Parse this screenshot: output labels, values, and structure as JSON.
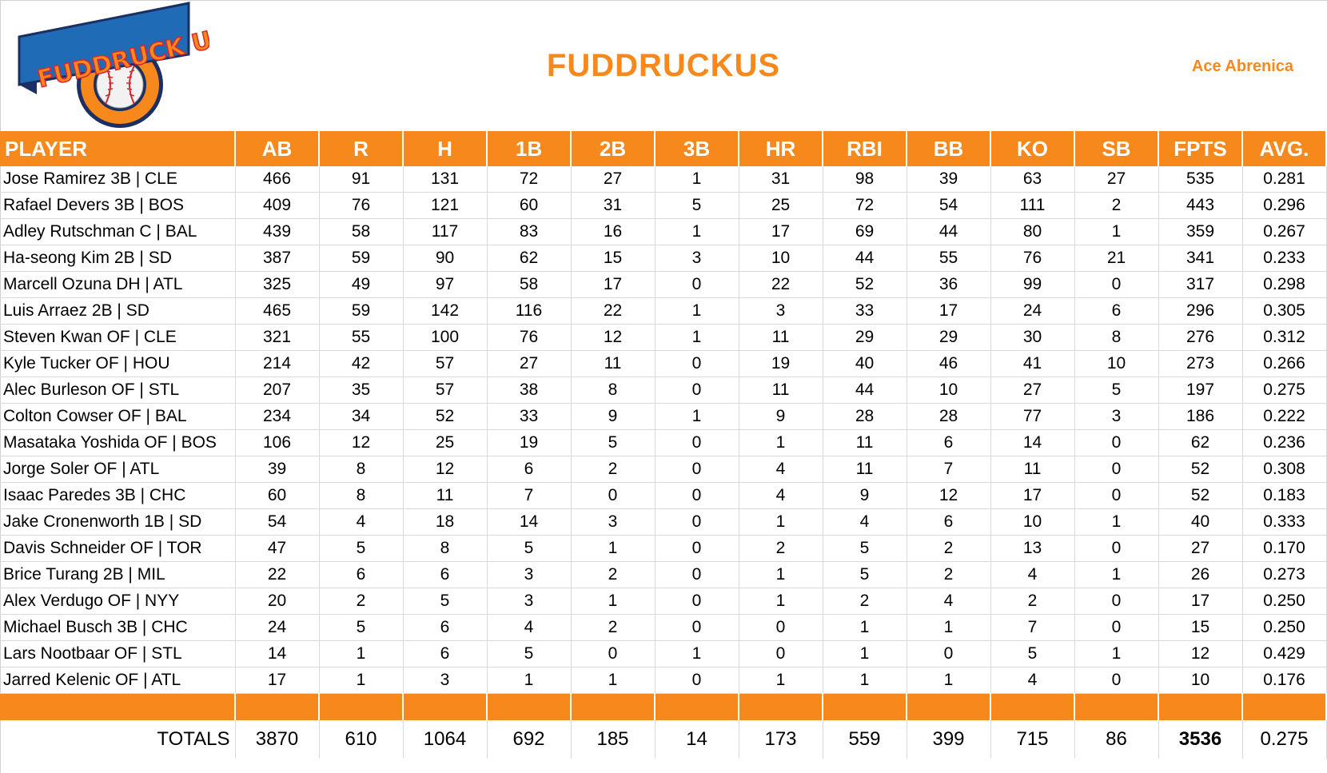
{
  "header": {
    "logo_text": "FUDDRUCK US",
    "team_name": "FUDDRUCKUS",
    "owner": "Ace Abrenica"
  },
  "columns": [
    "PLAYER",
    "AB",
    "R",
    "H",
    "1B",
    "2B",
    "3B",
    "HR",
    "RBI",
    "BB",
    "KO",
    "SB",
    "FPTS",
    "AVG."
  ],
  "players": [
    [
      "Jose Ramirez 3B | CLE",
      "466",
      "91",
      "131",
      "72",
      "27",
      "1",
      "31",
      "98",
      "39",
      "63",
      "27",
      "535",
      "0.281"
    ],
    [
      "Rafael Devers 3B | BOS",
      "409",
      "76",
      "121",
      "60",
      "31",
      "5",
      "25",
      "72",
      "54",
      "111",
      "2",
      "443",
      "0.296"
    ],
    [
      "Adley Rutschman C | BAL",
      "439",
      "58",
      "117",
      "83",
      "16",
      "1",
      "17",
      "69",
      "44",
      "80",
      "1",
      "359",
      "0.267"
    ],
    [
      "Ha-seong Kim 2B | SD",
      "387",
      "59",
      "90",
      "62",
      "15",
      "3",
      "10",
      "44",
      "55",
      "76",
      "21",
      "341",
      "0.233"
    ],
    [
      "Marcell Ozuna DH | ATL",
      "325",
      "49",
      "97",
      "58",
      "17",
      "0",
      "22",
      "52",
      "36",
      "99",
      "0",
      "317",
      "0.298"
    ],
    [
      "Luis Arraez 2B | SD",
      "465",
      "59",
      "142",
      "116",
      "22",
      "1",
      "3",
      "33",
      "17",
      "24",
      "6",
      "296",
      "0.305"
    ],
    [
      "Steven Kwan OF | CLE",
      "321",
      "55",
      "100",
      "76",
      "12",
      "1",
      "11",
      "29",
      "29",
      "30",
      "8",
      "276",
      "0.312"
    ],
    [
      "Kyle Tucker OF | HOU",
      "214",
      "42",
      "57",
      "27",
      "11",
      "0",
      "19",
      "40",
      "46",
      "41",
      "10",
      "273",
      "0.266"
    ],
    [
      "Alec Burleson OF | STL",
      "207",
      "35",
      "57",
      "38",
      "8",
      "0",
      "11",
      "44",
      "10",
      "27",
      "5",
      "197",
      "0.275"
    ],
    [
      "Colton Cowser OF | BAL",
      "234",
      "34",
      "52",
      "33",
      "9",
      "1",
      "9",
      "28",
      "28",
      "77",
      "3",
      "186",
      "0.222"
    ],
    [
      "Masataka Yoshida OF | BOS",
      "106",
      "12",
      "25",
      "19",
      "5",
      "0",
      "1",
      "11",
      "6",
      "14",
      "0",
      "62",
      "0.236"
    ],
    [
      "Jorge Soler OF | ATL",
      "39",
      "8",
      "12",
      "6",
      "2",
      "0",
      "4",
      "11",
      "7",
      "11",
      "0",
      "52",
      "0.308"
    ],
    [
      "Isaac Paredes 3B | CHC",
      "60",
      "8",
      "11",
      "7",
      "0",
      "0",
      "4",
      "9",
      "12",
      "17",
      "0",
      "52",
      "0.183"
    ],
    [
      "Jake Cronenworth 1B | SD",
      "54",
      "4",
      "18",
      "14",
      "3",
      "0",
      "1",
      "4",
      "6",
      "10",
      "1",
      "40",
      "0.333"
    ],
    [
      "Davis Schneider OF | TOR",
      "47",
      "5",
      "8",
      "5",
      "1",
      "0",
      "2",
      "5",
      "2",
      "13",
      "0",
      "27",
      "0.170"
    ],
    [
      "Brice Turang 2B | MIL",
      "22",
      "6",
      "6",
      "3",
      "2",
      "0",
      "1",
      "5",
      "2",
      "4",
      "1",
      "26",
      "0.273"
    ],
    [
      "Alex Verdugo OF | NYY",
      "20",
      "2",
      "5",
      "3",
      "1",
      "0",
      "1",
      "2",
      "4",
      "2",
      "0",
      "17",
      "0.250"
    ],
    [
      "Michael Busch 3B | CHC",
      "24",
      "5",
      "6",
      "4",
      "2",
      "0",
      "0",
      "1",
      "1",
      "7",
      "0",
      "15",
      "0.250"
    ],
    [
      "Lars Nootbaar OF | STL",
      "14",
      "1",
      "6",
      "5",
      "0",
      "1",
      "0",
      "1",
      "0",
      "5",
      "1",
      "12",
      "0.429"
    ],
    [
      "Jarred Kelenic OF | ATL",
      "17",
      "1",
      "3",
      "1",
      "1",
      "0",
      "1",
      "1",
      "1",
      "4",
      "0",
      "10",
      "0.176"
    ]
  ],
  "totals": [
    "TOTALS",
    "3870",
    "610",
    "1064",
    "692",
    "185",
    "14",
    "173",
    "559",
    "399",
    "715",
    "86",
    "3536",
    "0.275"
  ],
  "colors": {
    "accent": "#f7891c",
    "logo_blue": "#1f6bb5",
    "logo_navy": "#1b2f63",
    "logo_red": "#d7262e"
  },
  "icons": {
    "logo": "fuddruckus-baseball-logo"
  }
}
